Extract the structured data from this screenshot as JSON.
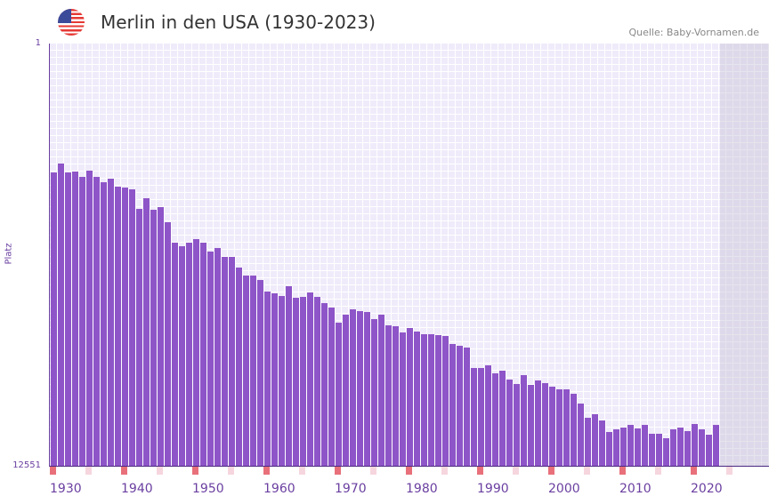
{
  "header": {
    "title": "Merlin in den USA (1930-2023)",
    "source": "Quelle: Baby-Vornamen.de",
    "flag_icon": "us-flag-icon"
  },
  "colors": {
    "bar": "#8e55c8",
    "marker_decade": "#e8707a",
    "marker_half": "#f6d6de",
    "axis_text": "#6a3fa0"
  },
  "chart_data": {
    "type": "bar",
    "title": "Merlin in den USA (1930-2023)",
    "xlabel": "",
    "ylabel": "Platz",
    "ylim": [
      1,
      12551
    ],
    "y_inverted": true,
    "y_ticks": [
      "1",
      "12551"
    ],
    "x_ticks": [
      "1930",
      "1940",
      "1950",
      "1960",
      "1970",
      "1980",
      "1990",
      "2000",
      "2010",
      "2020"
    ],
    "x_range": [
      1930,
      2029
    ],
    "x": [
      1930,
      1931,
      1932,
      1933,
      1934,
      1935,
      1936,
      1937,
      1938,
      1939,
      1940,
      1941,
      1942,
      1943,
      1944,
      1945,
      1946,
      1947,
      1948,
      1949,
      1950,
      1951,
      1952,
      1953,
      1954,
      1955,
      1956,
      1957,
      1958,
      1959,
      1960,
      1961,
      1962,
      1963,
      1964,
      1965,
      1966,
      1967,
      1968,
      1969,
      1970,
      1971,
      1972,
      1973,
      1974,
      1975,
      1976,
      1977,
      1978,
      1979,
      1980,
      1981,
      1982,
      1983,
      1984,
      1985,
      1986,
      1987,
      1988,
      1989,
      1990,
      1991,
      1992,
      1993,
      1994,
      1995,
      1996,
      1997,
      1998,
      1999,
      2000,
      2001,
      2002,
      2003,
      2004,
      2005,
      2006,
      2007,
      2008,
      2009,
      2010,
      2011,
      2012,
      2013,
      2014,
      2015,
      2016,
      2017,
      2018,
      2019,
      2020,
      2021,
      2022,
      2023
    ],
    "values": [
      3832,
      3568,
      3832,
      3806,
      3964,
      3779,
      3964,
      4123,
      4017,
      4255,
      4281,
      4334,
      4915,
      4598,
      4942,
      4862,
      5312,
      5919,
      6025,
      5919,
      5814,
      5919,
      6183,
      6078,
      6342,
      6342,
      6659,
      6897,
      6897,
      7029,
      7372,
      7425,
      7505,
      7214,
      7557,
      7531,
      7399,
      7531,
      7716,
      7848,
      8297,
      8059,
      7901,
      7954,
      7980,
      8191,
      8059,
      8376,
      8403,
      8588,
      8456,
      8561,
      8641,
      8641,
      8667,
      8694,
      8931,
      8984,
      9037,
      9645,
      9645,
      9565,
      9803,
      9724,
      9988,
      10120,
      9856,
      10147,
      10015,
      10094,
      10200,
      10279,
      10279,
      10411,
      10702,
      11124,
      11019,
      11204,
      11547,
      11468,
      11415,
      11336,
      11441,
      11336,
      11600,
      11600,
      11732,
      11468,
      11415,
      11521,
      11309,
      11468,
      11626,
      11336
    ],
    "grid": true,
    "legend": "none"
  }
}
